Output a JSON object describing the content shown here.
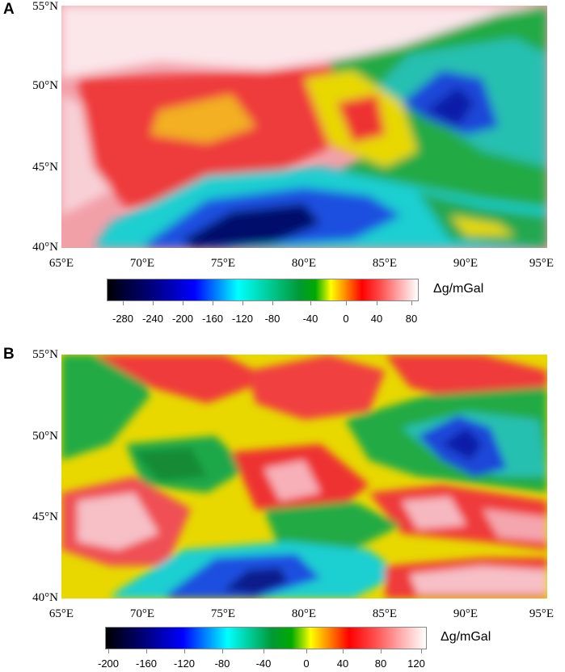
{
  "panels": [
    {
      "label": "A",
      "lat_labels": [
        "55°N",
        "50°N",
        "45°N",
        "40°N"
      ],
      "lon_labels": [
        "65°E",
        "70°E",
        "75°E",
        "80°E",
        "85°E",
        "90°E",
        "95°E"
      ],
      "colorbar": {
        "unit": "Δg/mGal",
        "ticks": [
          "-280",
          "-240",
          "-200",
          "-160",
          "-120",
          "-80",
          "-40",
          "0",
          "40",
          "80"
        ]
      }
    },
    {
      "label": "B",
      "lat_labels": [
        "55°N",
        "50°N",
        "45°N",
        "40°N"
      ],
      "lon_labels": [
        "65°E",
        "70°E",
        "75°E",
        "80°E",
        "85°E",
        "90°E",
        "95°E"
      ],
      "colorbar": {
        "unit": "Δg/mGal",
        "ticks": [
          "-200",
          "-160",
          "-120",
          "-80",
          "-40",
          "0",
          "40",
          "80",
          "120"
        ]
      }
    }
  ],
  "colors": {
    "very_low": "#000033",
    "low": "#0000ff",
    "mid_low": "#00ffff",
    "mid": "#00aa00",
    "zero": "#ffff00",
    "high": "#ff0000",
    "very_high": "#ffffff"
  }
}
